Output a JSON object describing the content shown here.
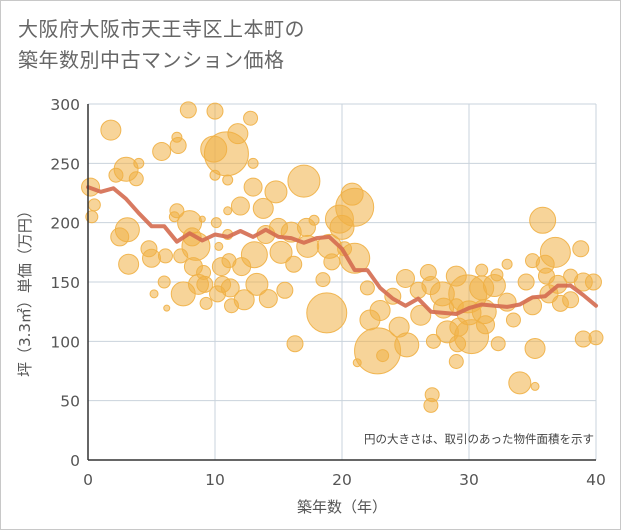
{
  "title": {
    "line1": "大阪府大阪市天王寺区上本町の",
    "line2": "築年数別中古マンション価格"
  },
  "colors": {
    "bubble": "#f0b045",
    "line": "#d46b50",
    "grid": "#c9d3dc",
    "axis": "#333333"
  },
  "chart_data": {
    "type": "scatter",
    "xlabel": "築年数（年）",
    "ylabel": "坪（3.3㎡）単価（万円）",
    "xlim": [
      0,
      40
    ],
    "ylim": [
      0,
      300
    ],
    "xticks": [
      0,
      10,
      20,
      30,
      40
    ],
    "yticks": [
      0,
      50,
      100,
      150,
      200,
      250,
      300
    ],
    "annotation": "円の大きさは、取引のあった物件面積を示す",
    "line": {
      "x": [
        0,
        1,
        2,
        3,
        4,
        5,
        6,
        7,
        8,
        9,
        10,
        11,
        12,
        13,
        14,
        15,
        16,
        17,
        18,
        19,
        20,
        21,
        22,
        23,
        24,
        25,
        26,
        27,
        28,
        29,
        30,
        31,
        32,
        33,
        34,
        35,
        36,
        37,
        38,
        39,
        40
      ],
      "y": [
        230,
        226,
        229,
        220,
        208,
        197,
        197,
        184,
        191,
        185,
        190,
        188,
        193,
        188,
        194,
        188,
        187,
        183,
        187,
        188,
        178,
        160,
        160,
        145,
        136,
        130,
        136,
        125,
        124,
        123,
        128,
        131,
        130,
        129,
        131,
        137,
        138,
        147,
        147,
        139,
        130
      ]
    },
    "points": [
      {
        "x": 0.2,
        "y": 230,
        "s": 9
      },
      {
        "x": 0.3,
        "y": 205,
        "s": 6
      },
      {
        "x": 0.5,
        "y": 215,
        "s": 6
      },
      {
        "x": 1.8,
        "y": 278,
        "s": 10
      },
      {
        "x": 2.2,
        "y": 240,
        "s": 7
      },
      {
        "x": 2.5,
        "y": 188,
        "s": 9
      },
      {
        "x": 3.0,
        "y": 245,
        "s": 12
      },
      {
        "x": 3.1,
        "y": 194,
        "s": 12
      },
      {
        "x": 3.2,
        "y": 165,
        "s": 10
      },
      {
        "x": 3.8,
        "y": 237,
        "s": 7
      },
      {
        "x": 4.0,
        "y": 250,
        "s": 5
      },
      {
        "x": 4.8,
        "y": 178,
        "s": 8
      },
      {
        "x": 5.0,
        "y": 170,
        "s": 9
      },
      {
        "x": 5.2,
        "y": 140,
        "s": 4
      },
      {
        "x": 5.8,
        "y": 260,
        "s": 9
      },
      {
        "x": 6.1,
        "y": 172,
        "s": 7
      },
      {
        "x": 6.0,
        "y": 150,
        "s": 6
      },
      {
        "x": 6.2,
        "y": 128,
        "s": 3
      },
      {
        "x": 6.8,
        "y": 205,
        "s": 5
      },
      {
        "x": 7.0,
        "y": 272,
        "s": 5
      },
      {
        "x": 7.1,
        "y": 265,
        "s": 8
      },
      {
        "x": 7.0,
        "y": 210,
        "s": 7
      },
      {
        "x": 7.3,
        "y": 172,
        "s": 7
      },
      {
        "x": 7.5,
        "y": 140,
        "s": 12
      },
      {
        "x": 7.9,
        "y": 295,
        "s": 8
      },
      {
        "x": 8.0,
        "y": 200,
        "s": 12
      },
      {
        "x": 8.2,
        "y": 188,
        "s": 9
      },
      {
        "x": 8.3,
        "y": 163,
        "s": 9
      },
      {
        "x": 8.5,
        "y": 180,
        "s": 14
      },
      {
        "x": 8.7,
        "y": 148,
        "s": 10
      },
      {
        "x": 9.0,
        "y": 203,
        "s": 3
      },
      {
        "x": 9.1,
        "y": 158,
        "s": 7
      },
      {
        "x": 9.2,
        "y": 148,
        "s": 8
      },
      {
        "x": 9.3,
        "y": 132,
        "s": 6
      },
      {
        "x": 9.9,
        "y": 262,
        "s": 13
      },
      {
        "x": 10.0,
        "y": 294,
        "s": 8
      },
      {
        "x": 10.0,
        "y": 240,
        "s": 5
      },
      {
        "x": 10.1,
        "y": 200,
        "s": 5
      },
      {
        "x": 10.3,
        "y": 180,
        "s": 4
      },
      {
        "x": 10.2,
        "y": 140,
        "s": 8
      },
      {
        "x": 10.5,
        "y": 163,
        "s": 9
      },
      {
        "x": 10.6,
        "y": 148,
        "s": 8
      },
      {
        "x": 10.9,
        "y": 258,
        "s": 22
      },
      {
        "x": 11.0,
        "y": 236,
        "s": 5
      },
      {
        "x": 11.0,
        "y": 210,
        "s": 4
      },
      {
        "x": 11.0,
        "y": 190,
        "s": 5
      },
      {
        "x": 11.1,
        "y": 168,
        "s": 7
      },
      {
        "x": 11.2,
        "y": 145,
        "s": 9
      },
      {
        "x": 11.3,
        "y": 130,
        "s": 7
      },
      {
        "x": 11.8,
        "y": 275,
        "s": 10
      },
      {
        "x": 12.0,
        "y": 214,
        "s": 9
      },
      {
        "x": 12.1,
        "y": 163,
        "s": 9
      },
      {
        "x": 12.3,
        "y": 135,
        "s": 10
      },
      {
        "x": 12.8,
        "y": 288,
        "s": 7
      },
      {
        "x": 13.0,
        "y": 250,
        "s": 5
      },
      {
        "x": 13.0,
        "y": 230,
        "s": 9
      },
      {
        "x": 13.1,
        "y": 173,
        "s": 13
      },
      {
        "x": 13.3,
        "y": 148,
        "s": 11
      },
      {
        "x": 13.8,
        "y": 212,
        "s": 10
      },
      {
        "x": 14.0,
        "y": 190,
        "s": 9
      },
      {
        "x": 14.2,
        "y": 136,
        "s": 9
      },
      {
        "x": 14.8,
        "y": 226,
        "s": 11
      },
      {
        "x": 15.0,
        "y": 196,
        "s": 9
      },
      {
        "x": 15.2,
        "y": 175,
        "s": 11
      },
      {
        "x": 15.5,
        "y": 143,
        "s": 8
      },
      {
        "x": 16.0,
        "y": 192,
        "s": 10
      },
      {
        "x": 16.2,
        "y": 165,
        "s": 8
      },
      {
        "x": 16.3,
        "y": 98,
        "s": 8
      },
      {
        "x": 17.0,
        "y": 235,
        "s": 16
      },
      {
        "x": 17.2,
        "y": 196,
        "s": 9
      },
      {
        "x": 17.3,
        "y": 180,
        "s": 11
      },
      {
        "x": 17.8,
        "y": 202,
        "s": 5
      },
      {
        "x": 18.5,
        "y": 152,
        "s": 7
      },
      {
        "x": 18.8,
        "y": 124,
        "s": 20
      },
      {
        "x": 19.0,
        "y": 180,
        "s": 12
      },
      {
        "x": 19.2,
        "y": 167,
        "s": 8
      },
      {
        "x": 19.8,
        "y": 203,
        "s": 14
      },
      {
        "x": 20.0,
        "y": 196,
        "s": 12
      },
      {
        "x": 20.2,
        "y": 178,
        "s": 7
      },
      {
        "x": 20.8,
        "y": 224,
        "s": 11
      },
      {
        "x": 21.0,
        "y": 213,
        "s": 19
      },
      {
        "x": 21.0,
        "y": 170,
        "s": 15
      },
      {
        "x": 21.2,
        "y": 82,
        "s": 4
      },
      {
        "x": 22.0,
        "y": 145,
        "s": 7
      },
      {
        "x": 22.2,
        "y": 118,
        "s": 10
      },
      {
        "x": 22.8,
        "y": 92,
        "s": 23
      },
      {
        "x": 23.0,
        "y": 126,
        "s": 10
      },
      {
        "x": 23.2,
        "y": 88,
        "s": 6
      },
      {
        "x": 24.0,
        "y": 138,
        "s": 8
      },
      {
        "x": 24.5,
        "y": 112,
        "s": 10
      },
      {
        "x": 25.0,
        "y": 153,
        "s": 9
      },
      {
        "x": 25.1,
        "y": 97,
        "s": 12
      },
      {
        "x": 26.0,
        "y": 143,
        "s": 8
      },
      {
        "x": 26.2,
        "y": 122,
        "s": 10
      },
      {
        "x": 26.8,
        "y": 158,
        "s": 8
      },
      {
        "x": 27.0,
        "y": 147,
        "s": 9
      },
      {
        "x": 27.2,
        "y": 100,
        "s": 7
      },
      {
        "x": 27.1,
        "y": 55,
        "s": 7
      },
      {
        "x": 27.0,
        "y": 46,
        "s": 7
      },
      {
        "x": 27.9,
        "y": 140,
        "s": 12
      },
      {
        "x": 28.0,
        "y": 128,
        "s": 10
      },
      {
        "x": 28.3,
        "y": 108,
        "s": 11
      },
      {
        "x": 29.0,
        "y": 155,
        "s": 10
      },
      {
        "x": 29.0,
        "y": 130,
        "s": 7
      },
      {
        "x": 29.2,
        "y": 112,
        "s": 9
      },
      {
        "x": 29.1,
        "y": 98,
        "s": 8
      },
      {
        "x": 29.0,
        "y": 83,
        "s": 7
      },
      {
        "x": 29.9,
        "y": 140,
        "s": 19
      },
      {
        "x": 30.0,
        "y": 124,
        "s": 12
      },
      {
        "x": 30.2,
        "y": 104,
        "s": 17
      },
      {
        "x": 31.0,
        "y": 160,
        "s": 6
      },
      {
        "x": 31.0,
        "y": 145,
        "s": 12
      },
      {
        "x": 31.2,
        "y": 125,
        "s": 12
      },
      {
        "x": 31.3,
        "y": 114,
        "s": 9
      },
      {
        "x": 32.0,
        "y": 147,
        "s": 11
      },
      {
        "x": 32.2,
        "y": 156,
        "s": 6
      },
      {
        "x": 32.3,
        "y": 98,
        "s": 7
      },
      {
        "x": 33.0,
        "y": 165,
        "s": 5
      },
      {
        "x": 33.0,
        "y": 133,
        "s": 9
      },
      {
        "x": 33.5,
        "y": 118,
        "s": 7
      },
      {
        "x": 34.0,
        "y": 65,
        "s": 11
      },
      {
        "x": 34.5,
        "y": 150,
        "s": 8
      },
      {
        "x": 35.0,
        "y": 168,
        "s": 7
      },
      {
        "x": 35.0,
        "y": 130,
        "s": 9
      },
      {
        "x": 35.2,
        "y": 62,
        "s": 4
      },
      {
        "x": 35.2,
        "y": 94,
        "s": 10
      },
      {
        "x": 35.8,
        "y": 202,
        "s": 13
      },
      {
        "x": 36.0,
        "y": 165,
        "s": 9
      },
      {
        "x": 36.1,
        "y": 155,
        "s": 8
      },
      {
        "x": 36.3,
        "y": 140,
        "s": 9
      },
      {
        "x": 36.8,
        "y": 175,
        "s": 15
      },
      {
        "x": 37.0,
        "y": 148,
        "s": 9
      },
      {
        "x": 37.2,
        "y": 132,
        "s": 8
      },
      {
        "x": 38.0,
        "y": 155,
        "s": 7
      },
      {
        "x": 38.0,
        "y": 135,
        "s": 8
      },
      {
        "x": 38.8,
        "y": 178,
        "s": 8
      },
      {
        "x": 39.0,
        "y": 150,
        "s": 9
      },
      {
        "x": 39.0,
        "y": 102,
        "s": 8
      },
      {
        "x": 39.8,
        "y": 150,
        "s": 8
      },
      {
        "x": 40.0,
        "y": 103,
        "s": 7
      }
    ]
  }
}
